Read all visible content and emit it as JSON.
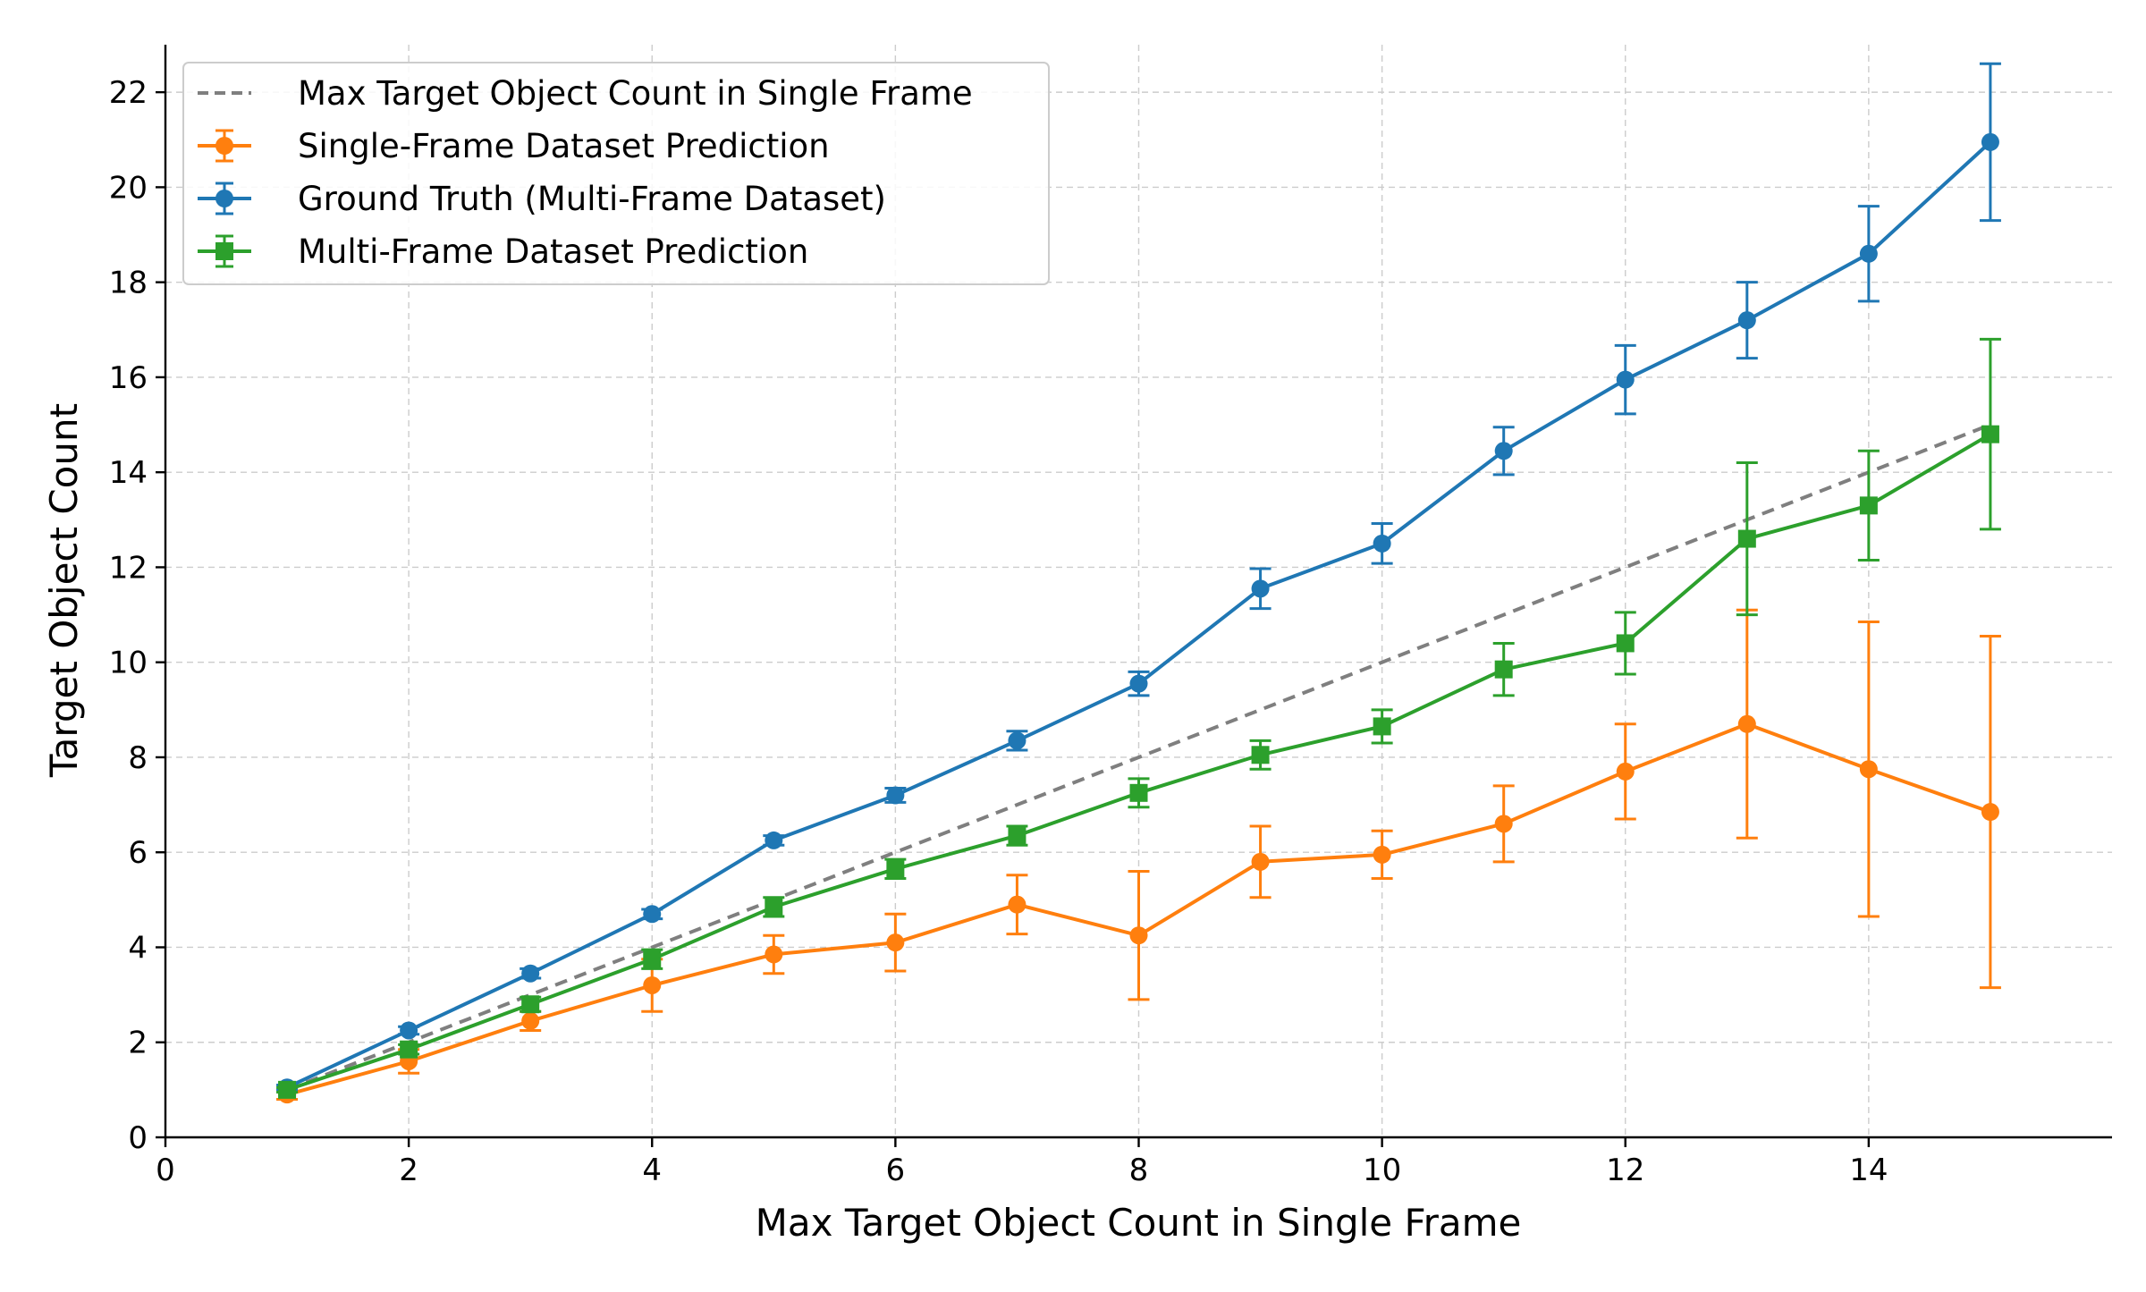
{
  "chart_data": {
    "type": "line",
    "xlabel": "Max Target Object Count in Single Frame",
    "ylabel": "Target Object Count",
    "xlim": [
      0,
      16
    ],
    "ylim": [
      0,
      23
    ],
    "x_ticks": [
      "0",
      "2",
      "4",
      "6",
      "8",
      "10",
      "12",
      "14"
    ],
    "y_ticks": [
      "0",
      "2",
      "4",
      "6",
      "8",
      "10",
      "12",
      "14",
      "16",
      "18",
      "20",
      "22"
    ],
    "grid": true,
    "legend_position": "top-left",
    "x": [
      1,
      2,
      3,
      4,
      5,
      6,
      7,
      8,
      9,
      10,
      11,
      12,
      13,
      14,
      15
    ],
    "series": [
      {
        "name": "Max Target Object Count in Single Frame",
        "color": "#7f7f7f",
        "style": "dashed",
        "marker": "none",
        "values": [
          1,
          2,
          3,
          4,
          5,
          6,
          7,
          8,
          9,
          10,
          11,
          12,
          13,
          14,
          15
        ]
      },
      {
        "name": "Single-Frame Dataset Prediction",
        "color": "#ff7f0e",
        "style": "solid",
        "marker": "circle",
        "values": [
          0.9,
          1.6,
          2.45,
          3.2,
          3.85,
          4.1,
          4.9,
          4.25,
          5.8,
          5.95,
          6.6,
          7.7,
          8.7,
          7.75,
          6.85
        ],
        "errors": [
          0.1,
          0.25,
          0.2,
          0.55,
          0.4,
          0.6,
          0.62,
          1.35,
          0.75,
          0.5,
          0.8,
          1.0,
          2.4,
          3.1,
          3.7
        ]
      },
      {
        "name": "Ground Truth (Multi-Frame Dataset)",
        "color": "#1f77b4",
        "style": "solid",
        "marker": "circle",
        "values": [
          1.05,
          2.25,
          3.45,
          4.7,
          6.25,
          7.2,
          8.35,
          9.55,
          11.55,
          12.5,
          14.45,
          15.95,
          17.2,
          18.6,
          20.95
        ],
        "errors": [
          0.05,
          0.08,
          0.1,
          0.1,
          0.1,
          0.15,
          0.2,
          0.25,
          0.42,
          0.42,
          0.5,
          0.72,
          0.8,
          1.0,
          1.65
        ]
      },
      {
        "name": "Multi-Frame Dataset Prediction",
        "color": "#2ca02c",
        "style": "solid",
        "marker": "square",
        "values": [
          1.0,
          1.85,
          2.8,
          3.75,
          4.85,
          5.65,
          6.35,
          7.25,
          8.05,
          8.65,
          9.85,
          10.4,
          12.6,
          13.3,
          14.8
        ],
        "errors": [
          0.05,
          0.1,
          0.15,
          0.2,
          0.2,
          0.2,
          0.2,
          0.3,
          0.3,
          0.35,
          0.55,
          0.65,
          1.6,
          1.15,
          2.0
        ]
      }
    ]
  }
}
